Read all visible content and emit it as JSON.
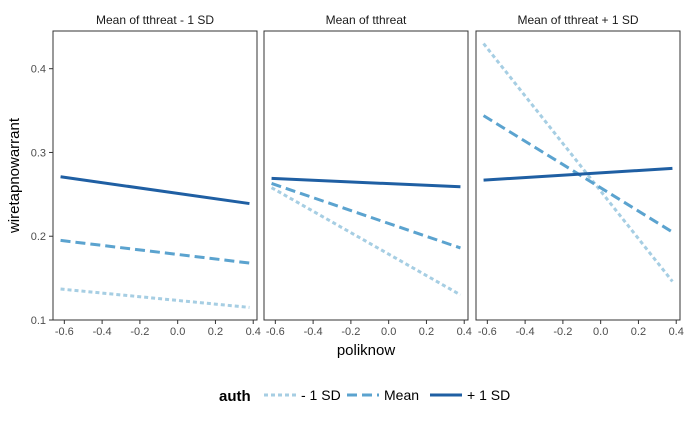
{
  "chart_data": {
    "type": "line",
    "xlabel": "poliknow",
    "ylabel": "wiretapnowarrant",
    "xlim": [
      -0.66,
      0.42
    ],
    "ylim": [
      0.1,
      0.445
    ],
    "x_ticks": [
      -0.6,
      -0.4,
      -0.2,
      0.0,
      0.2,
      0.4
    ],
    "x_tick_labels": [
      "-0.6",
      "-0.4",
      "-0.2",
      "0.0",
      "0.2",
      "0.4"
    ],
    "y_ticks": [
      0.1,
      0.2,
      0.3,
      0.4
    ],
    "y_tick_labels": [
      "0.1",
      "0.2",
      "0.3",
      "0.4"
    ],
    "grid": false,
    "legend": {
      "title": "auth",
      "position": "bottom",
      "entries": [
        {
          "label": "- 1 SD",
          "color": "#a6cee3",
          "dash": "dotted"
        },
        {
          "label": "Mean",
          "color": "#5ba3cf",
          "dash": "dashed"
        },
        {
          "label": "+ 1 SD",
          "color": "#1f5fa3",
          "dash": "solid"
        }
      ]
    },
    "panels": [
      {
        "title": "Mean of tthreat - 1 SD",
        "series": [
          {
            "name": "- 1 SD",
            "x": [
              -0.62,
              0.38
            ],
            "y": [
              0.137,
              0.115
            ]
          },
          {
            "name": "Mean",
            "x": [
              -0.62,
              0.38
            ],
            "y": [
              0.195,
              0.168
            ]
          },
          {
            "name": "+ 1 SD",
            "x": [
              -0.62,
              0.38
            ],
            "y": [
              0.271,
              0.239
            ]
          }
        ]
      },
      {
        "title": "Mean of tthreat",
        "series": [
          {
            "name": "- 1 SD",
            "x": [
              -0.62,
              0.38
            ],
            "y": [
              0.258,
              0.13
            ]
          },
          {
            "name": "Mean",
            "x": [
              -0.62,
              0.38
            ],
            "y": [
              0.263,
              0.186
            ]
          },
          {
            "name": "+ 1 SD",
            "x": [
              -0.62,
              0.38
            ],
            "y": [
              0.269,
              0.259
            ]
          }
        ]
      },
      {
        "title": "Mean of tthreat + 1 SD",
        "series": [
          {
            "name": "- 1 SD",
            "x": [
              -0.62,
              0.38
            ],
            "y": [
              0.43,
              0.146
            ]
          },
          {
            "name": "Mean",
            "x": [
              -0.62,
              0.38
            ],
            "y": [
              0.344,
              0.205
            ]
          },
          {
            "name": "+ 1 SD",
            "x": [
              -0.62,
              0.38
            ],
            "y": [
              0.267,
              0.281
            ]
          }
        ]
      }
    ]
  }
}
